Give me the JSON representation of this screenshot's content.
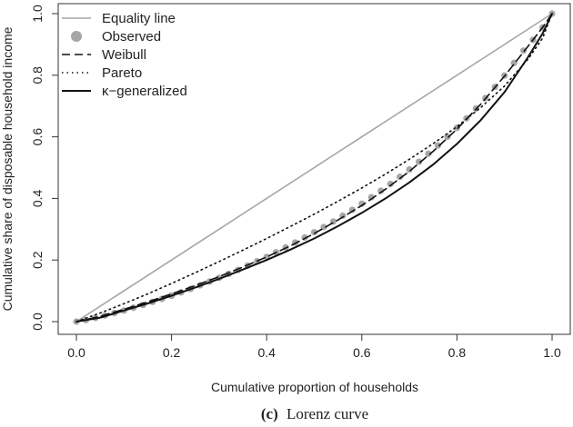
{
  "chart_data": {
    "type": "line",
    "title": "",
    "xlabel": "Cumulative proportion of households",
    "ylabel": "Cumulative share of disposable household income",
    "xlim": [
      0,
      1
    ],
    "ylim": [
      0,
      1
    ],
    "xticks": [
      "0.0",
      "0.2",
      "0.4",
      "0.6",
      "0.8",
      "1.0"
    ],
    "yticks": [
      "0.0",
      "0.2",
      "0.4",
      "0.6",
      "0.8",
      "1.0"
    ],
    "grid": false,
    "legend_position": "top-left",
    "caption_label": "(c)",
    "caption_text": "Lorenz curve",
    "series": [
      {
        "name": "Equality line",
        "style": "solid",
        "color": "#a6a6a6",
        "x": [
          0,
          1
        ],
        "y": [
          0,
          1
        ]
      },
      {
        "name": "Observed",
        "style": "points",
        "color": "#a6a6a6",
        "x": [
          0.0,
          0.02,
          0.04,
          0.06,
          0.08,
          0.1,
          0.12,
          0.14,
          0.16,
          0.18,
          0.2,
          0.22,
          0.24,
          0.26,
          0.28,
          0.3,
          0.32,
          0.34,
          0.36,
          0.38,
          0.4,
          0.42,
          0.44,
          0.46,
          0.48,
          0.5,
          0.52,
          0.54,
          0.56,
          0.58,
          0.6,
          0.62,
          0.64,
          0.66,
          0.68,
          0.7,
          0.72,
          0.74,
          0.76,
          0.78,
          0.8,
          0.82,
          0.84,
          0.86,
          0.88,
          0.9,
          0.92,
          0.94,
          0.96,
          0.98,
          1.0
        ],
        "y": [
          0.0,
          0.005,
          0.012,
          0.02,
          0.028,
          0.036,
          0.045,
          0.054,
          0.064,
          0.074,
          0.084,
          0.095,
          0.106,
          0.118,
          0.13,
          0.142,
          0.155,
          0.168,
          0.182,
          0.196,
          0.21,
          0.225,
          0.241,
          0.257,
          0.273,
          0.29,
          0.307,
          0.325,
          0.344,
          0.363,
          0.383,
          0.404,
          0.425,
          0.447,
          0.47,
          0.494,
          0.519,
          0.545,
          0.572,
          0.6,
          0.629,
          0.66,
          0.692,
          0.726,
          0.762,
          0.799,
          0.84,
          0.88,
          0.915,
          0.955,
          1.0
        ]
      },
      {
        "name": "Weibull",
        "style": "dashed",
        "color": "#111111",
        "x": [
          0.0,
          0.05,
          0.1,
          0.15,
          0.2,
          0.25,
          0.3,
          0.35,
          0.4,
          0.45,
          0.5,
          0.55,
          0.6,
          0.65,
          0.7,
          0.75,
          0.8,
          0.85,
          0.9,
          0.95,
          0.98,
          1.0
        ],
        "y": [
          0.0,
          0.017,
          0.04,
          0.064,
          0.09,
          0.117,
          0.146,
          0.177,
          0.21,
          0.246,
          0.286,
          0.33,
          0.377,
          0.43,
          0.488,
          0.553,
          0.625,
          0.706,
          0.797,
          0.895,
          0.955,
          1.0
        ]
      },
      {
        "name": "Pareto",
        "style": "dotted",
        "color": "#111111",
        "x": [
          0.0,
          0.05,
          0.1,
          0.15,
          0.2,
          0.25,
          0.3,
          0.35,
          0.4,
          0.45,
          0.5,
          0.55,
          0.6,
          0.65,
          0.7,
          0.75,
          0.8,
          0.85,
          0.9,
          0.95,
          0.98,
          1.0
        ],
        "y": [
          0.0,
          0.028,
          0.058,
          0.09,
          0.124,
          0.159,
          0.195,
          0.232,
          0.27,
          0.309,
          0.349,
          0.391,
          0.434,
          0.479,
          0.527,
          0.578,
          0.633,
          0.695,
          0.765,
          0.853,
          0.92,
          1.0
        ]
      },
      {
        "name": "κ−generalized",
        "style": "solid",
        "color": "#111111",
        "x": [
          0.0,
          0.05,
          0.1,
          0.15,
          0.2,
          0.25,
          0.3,
          0.35,
          0.4,
          0.45,
          0.5,
          0.55,
          0.6,
          0.65,
          0.7,
          0.75,
          0.8,
          0.85,
          0.9,
          0.95,
          0.98,
          1.0
        ],
        "y": [
          0.0,
          0.013,
          0.036,
          0.059,
          0.084,
          0.111,
          0.139,
          0.169,
          0.2,
          0.234,
          0.27,
          0.31,
          0.353,
          0.4,
          0.452,
          0.51,
          0.577,
          0.654,
          0.745,
          0.86,
          0.935,
          1.0
        ]
      }
    ]
  }
}
